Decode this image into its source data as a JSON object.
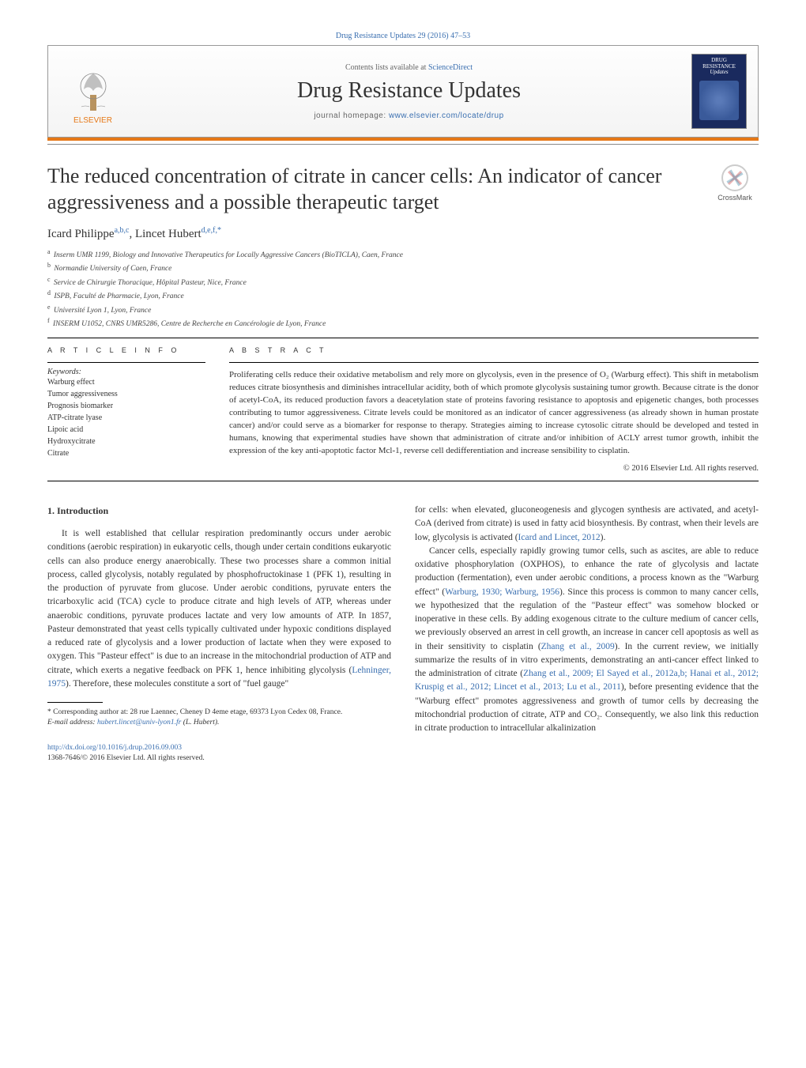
{
  "header": {
    "journal_ref_link": "Drug Resistance Updates 29 (2016) 47–53",
    "contents_prefix": "Contents lists available at ",
    "contents_link": "ScienceDirect",
    "journal_title": "Drug Resistance Updates",
    "homepage_prefix": "journal homepage: ",
    "homepage_link": "www.elsevier.com/locate/drup",
    "elsevier_label": "ELSEVIER",
    "cover_text_line1": "DRUG",
    "cover_text_line2": "RESISTANCE",
    "cover_text_line3": "Updates"
  },
  "crossmark_label": "CrossMark",
  "article": {
    "title": "The reduced concentration of citrate in cancer cells: An indicator of cancer aggressiveness and a possible therapeutic target",
    "authors_html": "Icard Philippe<sup>a,b,c</sup>, Lincet Hubert<sup>d,e,f,*</sup>",
    "affiliations": [
      {
        "sup": "a",
        "text": "Inserm UMR 1199, Biology and Innovative Therapeutics for Locally Aggressive Cancers (BioTICLA), Caen, France"
      },
      {
        "sup": "b",
        "text": "Normandie University of Caen, France"
      },
      {
        "sup": "c",
        "text": "Service de Chirurgie Thoracique, Hôpital Pasteur, Nice, France"
      },
      {
        "sup": "d",
        "text": "ISPB, Faculté de Pharmacie, Lyon, France"
      },
      {
        "sup": "e",
        "text": "Université Lyon 1, Lyon, France"
      },
      {
        "sup": "f",
        "text": "INSERM U1052, CNRS UMR5286, Centre de Recherche en Cancérologie de Lyon, France"
      }
    ]
  },
  "info": {
    "heading": "a r t i c l e   i n f o",
    "keywords_label": "Keywords:",
    "keywords": [
      "Warburg effect",
      "Tumor aggressiveness",
      "Prognosis biomarker",
      "ATP-citrate lyase",
      "Lipoic acid",
      "Hydroxycitrate",
      "Citrate"
    ]
  },
  "abstract": {
    "heading": "a b s t r a c t",
    "text": "Proliferating cells reduce their oxidative metabolism and rely more on glycolysis, even in the presence of O₂ (Warburg effect). This shift in metabolism reduces citrate biosynthesis and diminishes intracellular acidity, both of which promote glycolysis sustaining tumor growth. Because citrate is the donor of acetyl-CoA, its reduced production favors a deacetylation state of proteins favoring resistance to apoptosis and epigenetic changes, both processes contributing to tumor aggressiveness. Citrate levels could be monitored as an indicator of cancer aggressiveness (as already shown in human prostate cancer) and/or could serve as a biomarker for response to therapy. Strategies aiming to increase cytosolic citrate should be developed and tested in humans, knowing that experimental studies have shown that administration of citrate and/or inhibition of ACLY arrest tumor growth, inhibit the expression of the key anti-apoptotic factor Mcl-1, reverse cell dedifferentiation and increase sensibility to cisplatin.",
    "copyright": "© 2016 Elsevier Ltd. All rights reserved."
  },
  "body": {
    "section_heading": "1.  Introduction",
    "left_col_p1": "It is well established that cellular respiration predominantly occurs under aerobic conditions (aerobic respiration) in eukaryotic cells, though under certain conditions eukaryotic cells can also produce energy anaerobically. These two processes share a common initial process, called glycolysis, notably regulated by phosphofructokinase 1 (PFK 1), resulting in the production of pyruvate from glucose. Under aerobic conditions, pyruvate enters the tricarboxylic acid (TCA) cycle to produce citrate and high levels of ATP, whereas under anaerobic conditions, pyruvate produces lactate and very low amounts of ATP. In 1857, Pasteur demonstrated that yeast cells typically cultivated under hypoxic conditions displayed a reduced rate of glycolysis and a lower production of lactate when they were exposed to oxygen. This \"Pasteur effect\" is due to an increase in the mitochondrial production of ATP and citrate, which exerts a negative feedback on PFK 1, hence inhibiting glycolysis (",
    "left_col_ref1": "Lehninger, 1975",
    "left_col_p1_tail": "). Therefore, these molecules constitute a sort of \"fuel gauge\"",
    "right_col_p1": "for cells: when elevated, gluconeogenesis and glycogen synthesis are activated, and acetyl-CoA (derived from citrate) is used in fatty acid biosynthesis. By contrast, when their levels are low, glycolysis is activated (",
    "right_col_ref1": "Icard and Lincet, 2012",
    "right_col_p1_tail": ").",
    "right_col_p2a": "Cancer cells, especially rapidly growing tumor cells, such as ascites, are able to reduce oxidative phosphorylation (OXPHOS), to enhance the rate of glycolysis and lactate production (fermentation), even under aerobic conditions, a process known as the \"Warburg effect\" (",
    "right_col_ref2": "Warburg, 1930; Warburg, 1956",
    "right_col_p2b": "). Since this process is common to many cancer cells, we hypothesized that the regulation of the \"Pasteur effect\" was somehow blocked or inoperative in these cells. By adding exogenous citrate to the culture medium of cancer cells, we previously observed an arrest in cell growth, an increase in cancer cell apoptosis as well as in their sensitivity to cisplatin (",
    "right_col_ref3": "Zhang et al., 2009",
    "right_col_p2c": "). In the current review, we initially summarize the results of in vitro experiments, demonstrating an anti-cancer effect linked to the administration of citrate (",
    "right_col_ref4": "Zhang et al., 2009; El Sayed et al., 2012a,b; Hanai et al., 2012; Kruspig et al., 2012; Lincet et al., 2013; Lu et al., 2011",
    "right_col_p2d": "), before presenting evidence that the \"Warburg effect\" promotes aggressiveness and growth of tumor cells by decreasing the mitochondrial production of citrate, ATP and CO₂. Consequently, we also link this reduction in citrate production to intracellular alkalinization"
  },
  "footnote": {
    "corr": "* Corresponding author at: 28 rue Laennec, Cheney D 4eme etage, 69373 Lyon Cedex 08, France.",
    "email_label": "E-mail address: ",
    "email": "hubert.lincet@univ-lyon1.fr",
    "email_tail": " (L. Hubert)."
  },
  "footer": {
    "doi": "http://dx.doi.org/10.1016/j.drup.2016.09.003",
    "issn": "1368-7646/© 2016 Elsevier Ltd. All rights reserved."
  },
  "colors": {
    "link": "#3a6fb0",
    "orange": "#e67817",
    "cover_bg": "#1a2a5e"
  }
}
